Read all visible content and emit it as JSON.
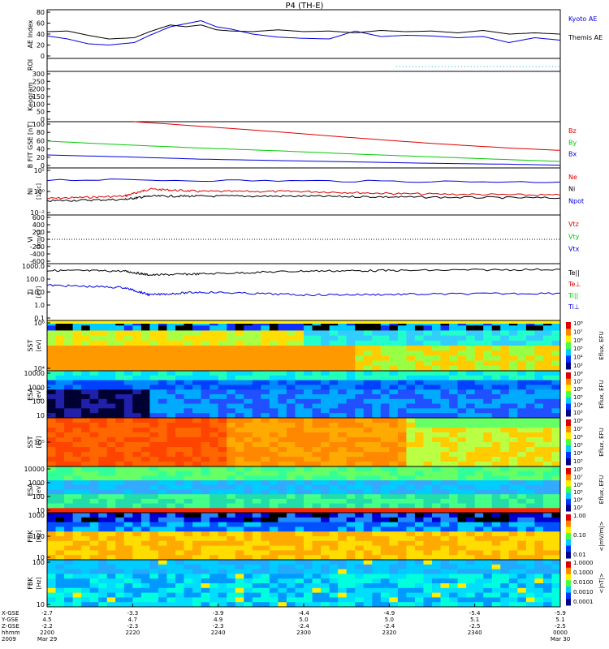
{
  "title": "P4 (TH-E)",
  "colors": {
    "blue": "#0000dd",
    "black": "#000000",
    "red": "#dd0000",
    "green": "#00cc00",
    "cyan": "#00bbcc",
    "yellow": "#ffee00"
  },
  "chart_data": [
    {
      "id": "ae",
      "type": "line",
      "ylabel": "AE Index",
      "yticks": [
        "80",
        "60",
        "40",
        "20",
        "0"
      ],
      "ylim": [
        0,
        80
      ],
      "series": [
        {
          "name": "Kyoto AE",
          "color": "blue",
          "x": [
            0,
            0.04,
            0.08,
            0.12,
            0.17,
            0.2,
            0.24,
            0.27,
            0.3,
            0.33,
            0.36,
            0.4,
            0.45,
            0.5,
            0.55,
            0.6,
            0.65,
            0.7,
            0.75,
            0.8,
            0.85,
            0.9,
            0.95,
            1
          ],
          "y": [
            37,
            32,
            24,
            22,
            26,
            38,
            52,
            57,
            62,
            52,
            48,
            40,
            35,
            33,
            32,
            45,
            36,
            38,
            37,
            34,
            36,
            26,
            34,
            30
          ]
        },
        {
          "name": "Themis AE",
          "color": "black",
          "x": [
            0,
            0.04,
            0.08,
            0.12,
            0.17,
            0.2,
            0.24,
            0.27,
            0.3,
            0.33,
            0.36,
            0.4,
            0.45,
            0.5,
            0.55,
            0.6,
            0.65,
            0.7,
            0.75,
            0.8,
            0.85,
            0.9,
            0.95,
            1
          ],
          "y": [
            44,
            45,
            38,
            32,
            34,
            44,
            55,
            52,
            55,
            47,
            45,
            44,
            47,
            44,
            45,
            42,
            46,
            44,
            45,
            42,
            46,
            40,
            42,
            40
          ]
        }
      ]
    },
    {
      "id": "roi",
      "type": "line",
      "ylabel": "ROI"
    },
    {
      "id": "keogram",
      "type": "line",
      "ylabel": "Keogram",
      "yticks": [
        "300",
        "250",
        "200",
        "150",
        "100",
        "50",
        "0"
      ],
      "ylim": [
        0,
        300
      ]
    },
    {
      "id": "bfgm",
      "type": "line",
      "ylabel": "B FIT GSE [nT]",
      "yticks": [
        "100",
        "80",
        "60",
        "40",
        "20",
        "0"
      ],
      "ylim": [
        0,
        100
      ],
      "series": [
        {
          "name": "Bz",
          "color": "red",
          "x": [
            0.17,
            0.3,
            0.45,
            0.6,
            0.75,
            0.9,
            1
          ],
          "y": [
            100,
            90,
            78,
            65,
            53,
            43,
            38
          ]
        },
        {
          "name": "By",
          "color": "green",
          "x": [
            0,
            0.15,
            0.3,
            0.45,
            0.6,
            0.75,
            0.9,
            1
          ],
          "y": [
            58,
            50,
            43,
            37,
            30,
            24,
            18,
            14
          ]
        },
        {
          "name": "Bx",
          "color": "blue",
          "x": [
            0,
            0.15,
            0.3,
            0.45,
            0.6,
            0.75,
            0.9,
            1
          ],
          "y": [
            28,
            24,
            19,
            16,
            13,
            10,
            8,
            6
          ]
        }
      ]
    },
    {
      "id": "density",
      "type": "line",
      "ylabel": "Ni",
      "ylabel2": "[1/cc]",
      "yticks": [
        "10²",
        "10⁰",
        "10⁻²"
      ],
      "series": [
        {
          "name": "Ne",
          "color": "red",
          "x": [
            0,
            0.15,
            0.2,
            0.3,
            0.5,
            0.7,
            1
          ],
          "y": [
            0.35,
            0.4,
            0.55,
            0.5,
            0.5,
            0.45,
            0.42
          ]
        },
        {
          "name": "Ni",
          "color": "black",
          "x": [
            0,
            0.15,
            0.2,
            0.3,
            0.5,
            0.7,
            1
          ],
          "y": [
            0.3,
            0.33,
            0.4,
            0.4,
            0.4,
            0.38,
            0.36
          ]
        },
        {
          "name": "Npot",
          "color": "blue",
          "x": [
            0,
            1
          ],
          "y": [
            0.75,
            0.7
          ]
        }
      ]
    },
    {
      "id": "velocity",
      "type": "line",
      "ylabel": "Vi",
      "ylabel2": "[km/s]",
      "yticks": [
        "600",
        "400",
        "200",
        "0",
        "-200",
        "-400",
        "-600"
      ],
      "ylim": [
        -600,
        600
      ],
      "series": [
        {
          "name": "Vtz",
          "color": "red"
        },
        {
          "name": "Vty",
          "color": "green"
        },
        {
          "name": "Vtx",
          "color": "blue"
        }
      ]
    },
    {
      "id": "temperature",
      "type": "line",
      "ylabel": "Ti",
      "ylabel2": "[eV]",
      "yticks": [
        "1000.0",
        "100.0",
        "10.0",
        "1.0",
        "0.1"
      ],
      "series": [
        {
          "name": "Te||",
          "color": "black",
          "x": [
            0,
            0.15,
            0.2,
            0.3,
            0.5,
            0.7,
            1
          ],
          "y": [
            0.88,
            0.87,
            0.8,
            0.82,
            0.87,
            0.88,
            0.9
          ]
        },
        {
          "name": "Te⊥",
          "color": "red"
        },
        {
          "name": "Ti||",
          "color": "green"
        },
        {
          "name": "Ti⊥",
          "color": "blue",
          "x": [
            0,
            0.15,
            0.2,
            0.3,
            0.5,
            0.7,
            1
          ],
          "y": [
            0.62,
            0.58,
            0.45,
            0.5,
            0.45,
            0.46,
            0.48
          ]
        }
      ]
    },
    {
      "id": "sst_e",
      "type": "heatmap",
      "ylabel": "SST",
      "ylabel2": "[eV]",
      "yticks": [
        "10⁶",
        "10⁴"
      ],
      "cbar_ticks": [
        "10⁸",
        "10⁷",
        "10⁶",
        "10⁵",
        "10⁴",
        "10³"
      ],
      "cbar_label": "Eflux, EFU",
      "palette": "mid"
    },
    {
      "id": "esa_e",
      "type": "heatmap",
      "ylabel": "ESA",
      "ylabel2": "[eV]",
      "yticks": [
        "10000",
        "1000",
        "100",
        "10"
      ],
      "cbar_ticks": [
        "10⁸",
        "10⁷",
        "10⁶",
        "10⁵",
        "10⁴",
        "10³"
      ],
      "cbar_label": "Eflux, EFU",
      "palette": "dark"
    },
    {
      "id": "sst_i",
      "type": "heatmap",
      "ylabel": "SST",
      "ylabel2": "[eV]",
      "yticks": [
        "10⁵"
      ],
      "cbar_ticks": [
        "10⁸",
        "10⁷",
        "10⁶",
        "10⁵",
        "10⁴",
        "10³"
      ],
      "cbar_label": "Eflux, EFU",
      "palette": "hot"
    },
    {
      "id": "esa_i",
      "type": "heatmap",
      "ylabel": "ESA",
      "ylabel2": "[eV]",
      "yticks": [
        "10000",
        "1000",
        "100",
        "10"
      ],
      "cbar_ticks": [
        "10⁸",
        "10⁷",
        "10⁶",
        "10⁵",
        "10⁴",
        "10³"
      ],
      "cbar_label": "Eflux, EFU",
      "palette": "layered"
    },
    {
      "id": "fbk1",
      "type": "heatmap",
      "ylabel": "FBK",
      "ylabel2": "[Hz]",
      "yticks": [
        "1000",
        "100",
        "10"
      ],
      "cbar_ticks": [
        "1.00",
        "0.10",
        "0.01"
      ],
      "cbar_label": "<|mV/m|>",
      "palette": "stripes"
    },
    {
      "id": "fbk2",
      "type": "heatmap",
      "ylabel": "FBK",
      "ylabel2": "[Hz]",
      "yticks": [
        "100",
        "10"
      ],
      "cbar_ticks": [
        "1.0000",
        "0.1000",
        "0.0100",
        "0.0010",
        "0.0001"
      ],
      "cbar_label": "<|nT|>",
      "palette": "cool"
    }
  ],
  "xaxis": {
    "row_labels": [
      "X-GSE",
      "Y-GSE",
      "Z-GSE",
      "hhmm",
      "2009"
    ],
    "ticks": [
      {
        "pos": 0.0,
        "rows": [
          "-2.7",
          "4.5",
          "-2.2",
          "2200",
          "Mar 29"
        ]
      },
      {
        "pos": 0.1667,
        "rows": [
          "-3.3",
          "4.7",
          "-2.3",
          "2220",
          ""
        ]
      },
      {
        "pos": 0.3333,
        "rows": [
          "-3.9",
          "4.9",
          "-2.3",
          "2240",
          ""
        ]
      },
      {
        "pos": 0.5,
        "rows": [
          "-4.4",
          "5.0",
          "-2.4",
          "2300",
          ""
        ]
      },
      {
        "pos": 0.6667,
        "rows": [
          "-4.9",
          "5.0",
          "-2.4",
          "2320",
          ""
        ]
      },
      {
        "pos": 0.8333,
        "rows": [
          "-5.4",
          "5.1",
          "-2.5",
          "2340",
          ""
        ]
      },
      {
        "pos": 1.0,
        "rows": [
          "-5.9",
          "5.1",
          "-2.5",
          "0000",
          "Mar 30"
        ]
      }
    ]
  }
}
